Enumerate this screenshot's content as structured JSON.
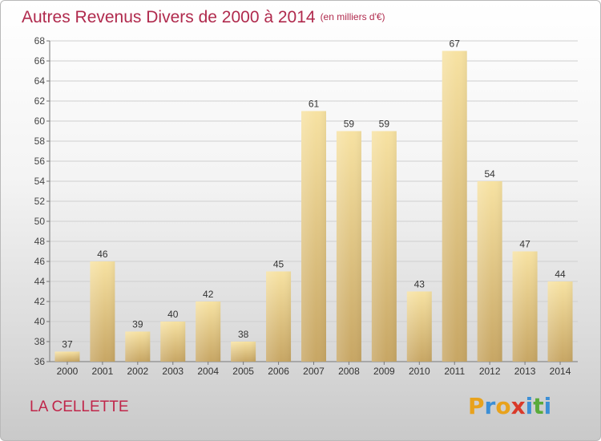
{
  "title": "Autres Revenus Divers de 2000 à 2014",
  "unit": "(en milliers d'€)",
  "commune": "LA CELLETTE",
  "logo": {
    "letters": [
      "P",
      "r",
      "o",
      "x",
      "i",
      "t",
      "i"
    ],
    "colors": [
      "#e8a21c",
      "#3c8fd6",
      "#e8a21c",
      "#d93a2a",
      "#3c8fd6",
      "#5aab3a",
      "#3c8fd6"
    ]
  },
  "colors": {
    "bar_light": "#f7e2a2",
    "bar_dark": "#c7a664",
    "title": "#b02a4d",
    "grid": "#cfcfcf"
  },
  "chart_data": {
    "type": "bar",
    "categories": [
      "2000",
      "2001",
      "2002",
      "2003",
      "2004",
      "2005",
      "2006",
      "2007",
      "2008",
      "2009",
      "2010",
      "2011",
      "2012",
      "2013",
      "2014"
    ],
    "values": [
      37,
      46,
      39,
      40,
      42,
      38,
      45,
      61,
      59,
      59,
      43,
      67,
      54,
      47,
      44
    ],
    "ylim": [
      36,
      68
    ],
    "yticks": [
      36,
      38,
      40,
      42,
      44,
      46,
      48,
      50,
      52,
      54,
      56,
      58,
      60,
      62,
      64,
      66,
      68
    ],
    "data_labels": true,
    "grid": true
  }
}
